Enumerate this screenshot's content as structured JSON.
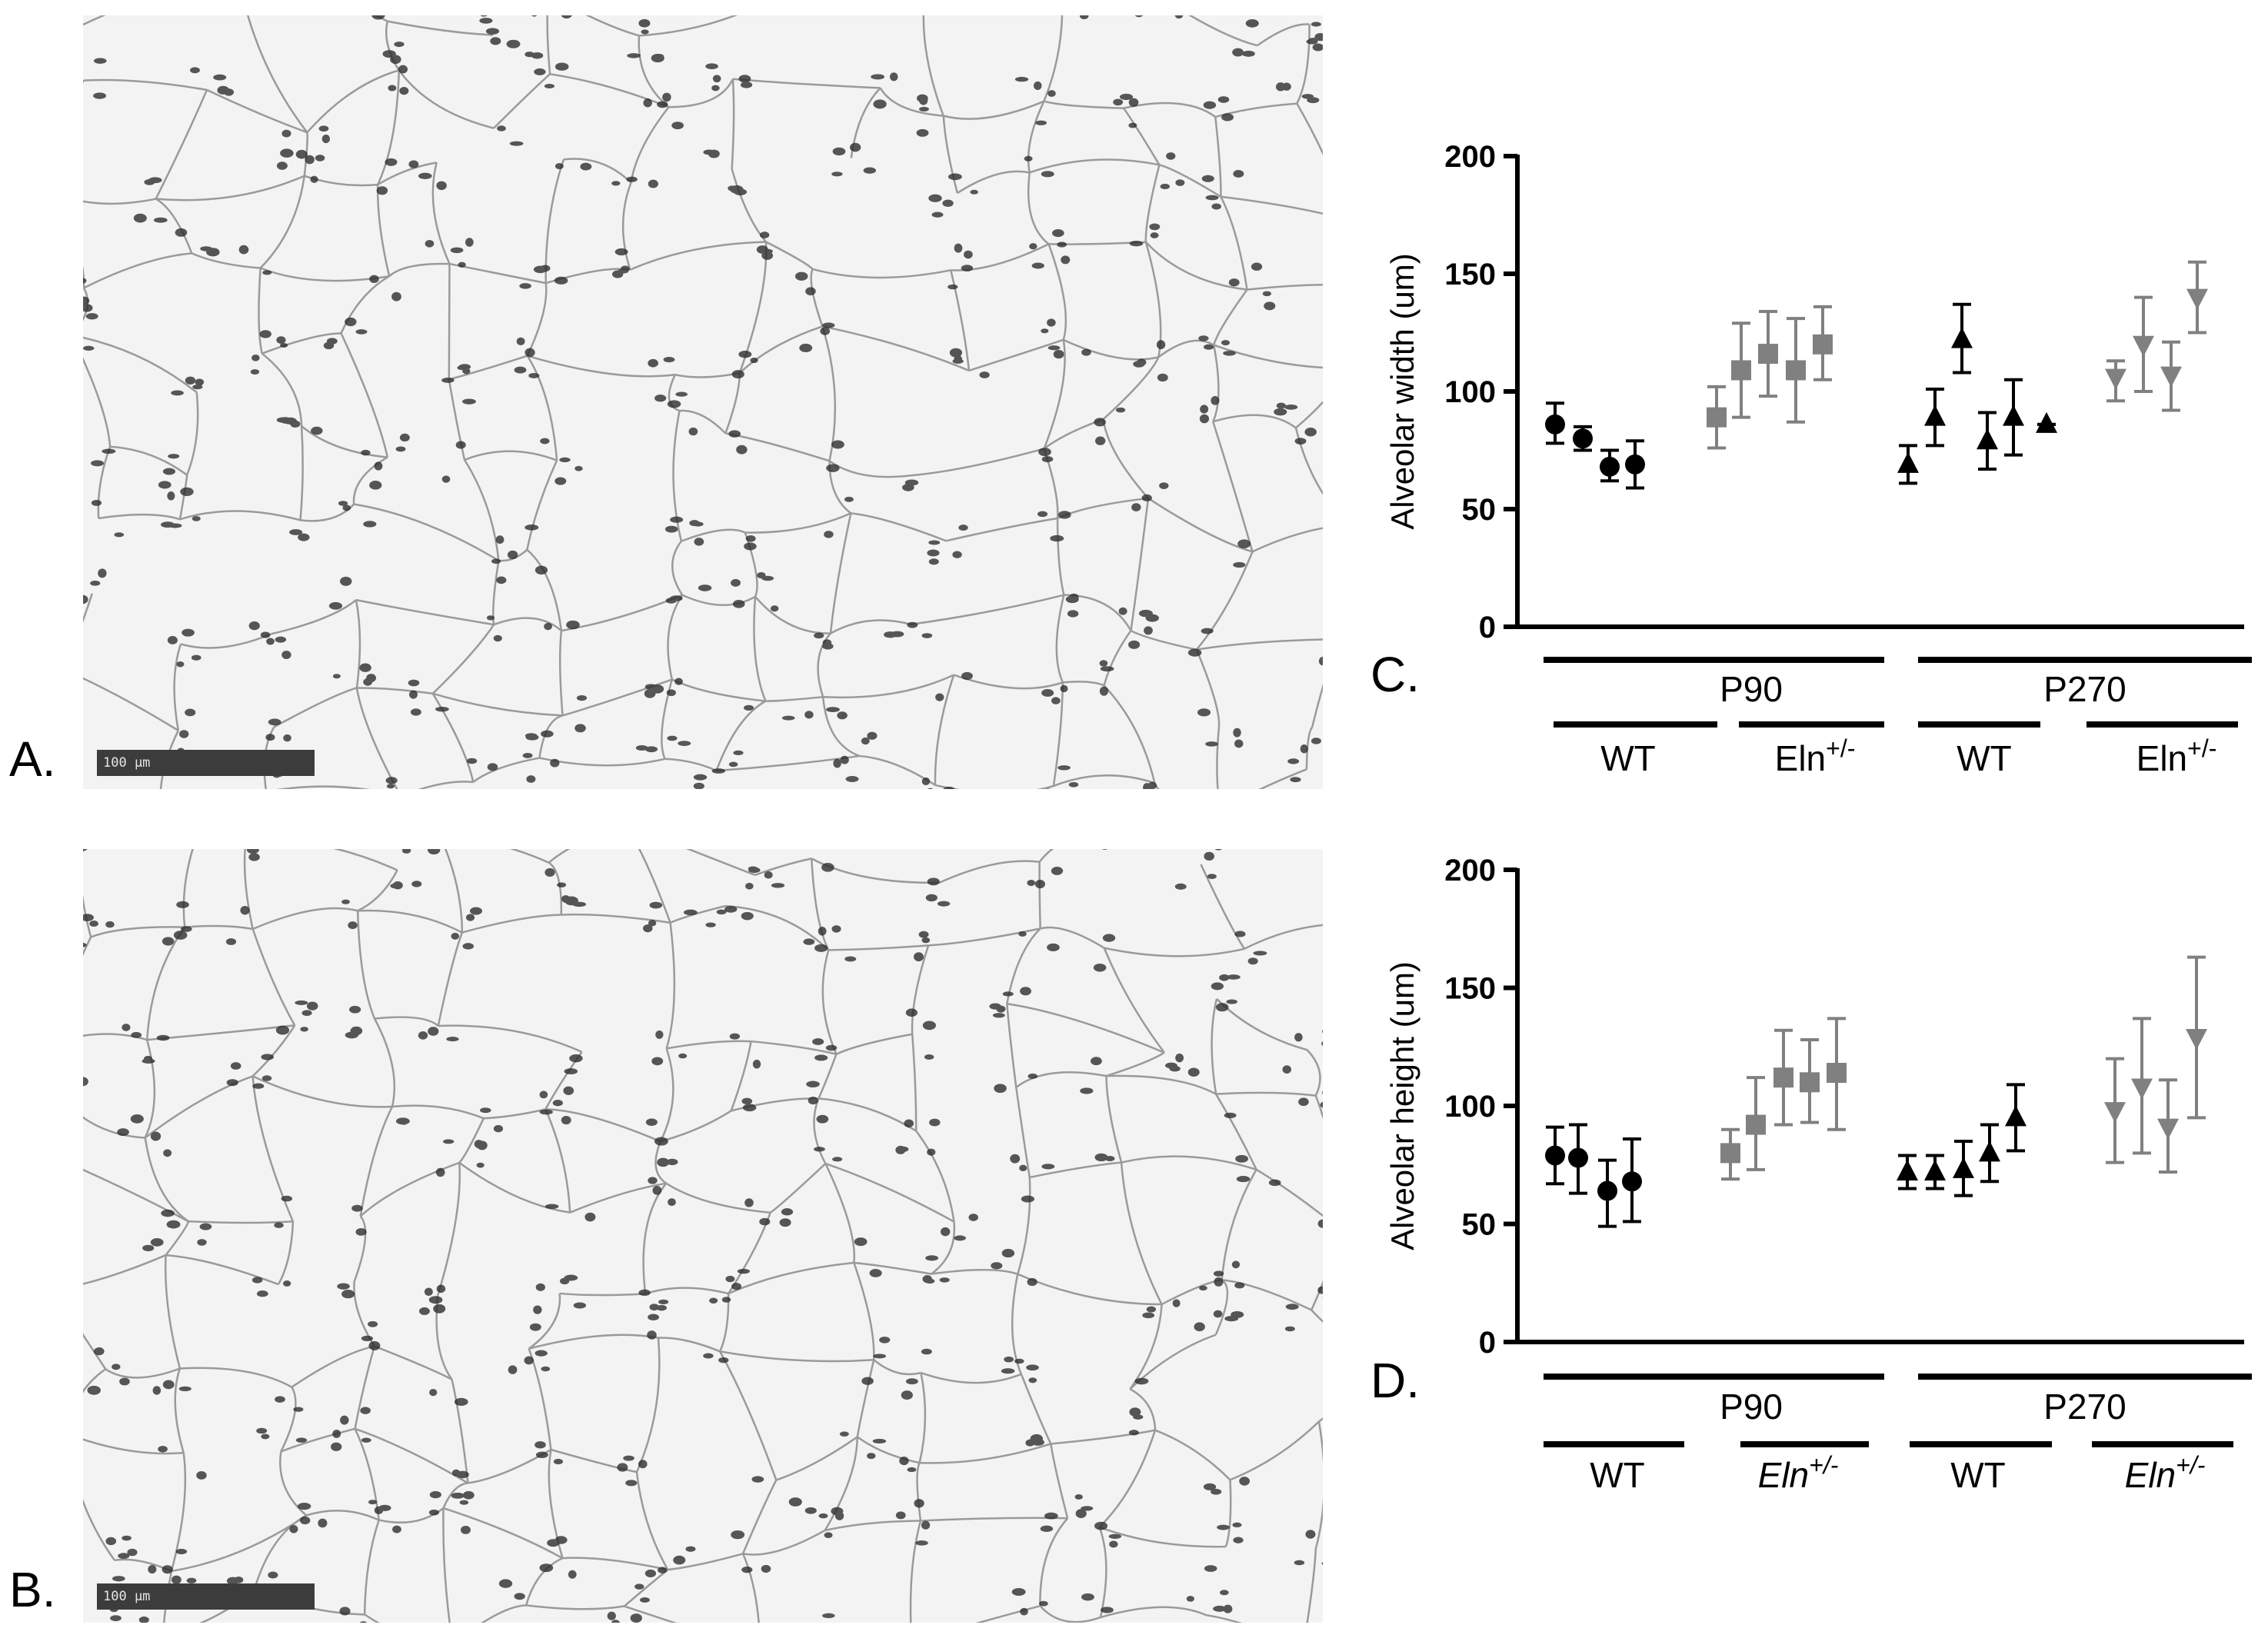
{
  "panels": {
    "A": {
      "letter": "A.",
      "scalebar": "100 µm"
    },
    "B": {
      "letter": "B.",
      "scalebar": "100 µm"
    },
    "C": {
      "letter": "C."
    },
    "D": {
      "letter": "D."
    }
  },
  "colors": {
    "wt": "#000000",
    "eln": "#808080",
    "background": "#f3f3f3",
    "cells": "#2a2a2a"
  },
  "chart_data": [
    {
      "type": "scatter",
      "panel": "C",
      "ylabel": "Alveolar width (um)",
      "ylim": [
        0,
        200
      ],
      "yticks": [
        0,
        50,
        100,
        150,
        200
      ],
      "group_labels": {
        "top": [
          "P90",
          "P270"
        ],
        "bottom": [
          "WT",
          "Eln+/-",
          "WT",
          "Eln+/-"
        ]
      },
      "series": [
        {
          "group": "P90 WT",
          "marker": "circle",
          "color": "#000000",
          "values": [
            86,
            80,
            68,
            69
          ],
          "err_low": [
            78,
            75,
            62,
            59
          ],
          "err_high": [
            95,
            85,
            75,
            79
          ]
        },
        {
          "group": "P90 Eln+/-",
          "marker": "square",
          "color": "#808080",
          "values": [
            89,
            109,
            116,
            109,
            120
          ],
          "err_low": [
            76,
            89,
            98,
            87,
            105
          ],
          "err_high": [
            102,
            129,
            134,
            131,
            136
          ]
        },
        {
          "group": "P270 WT",
          "marker": "triangle-up",
          "color": "#000000",
          "values": [
            69,
            89,
            122,
            79,
            89,
            86
          ],
          "err_low": [
            61,
            77,
            108,
            67,
            73,
            86
          ],
          "err_high": [
            77,
            101,
            137,
            91,
            105,
            86
          ]
        },
        {
          "group": "P270 Eln+/-",
          "marker": "triangle-down",
          "color": "#808080",
          "values": [
            106,
            120,
            107,
            140
          ],
          "err_low": [
            96,
            100,
            92,
            125
          ],
          "err_high": [
            113,
            140,
            121,
            155
          ]
        }
      ]
    },
    {
      "type": "scatter",
      "panel": "D",
      "ylabel": "Alveolar height (um)",
      "ylim": [
        0,
        200
      ],
      "yticks": [
        0,
        50,
        100,
        150,
        200
      ],
      "group_labels": {
        "top": [
          "P90",
          "P270"
        ],
        "bottom": [
          "WT",
          "Eln+/-",
          "WT",
          "Eln+/-"
        ]
      },
      "series": [
        {
          "group": "P90 WT",
          "marker": "circle",
          "color": "#000000",
          "values": [
            79,
            78,
            64,
            68
          ],
          "err_low": [
            67,
            63,
            49,
            51
          ],
          "err_high": [
            91,
            92,
            77,
            86
          ]
        },
        {
          "group": "P90 Eln+/-",
          "marker": "square",
          "color": "#808080",
          "values": [
            80,
            92,
            112,
            110,
            114
          ],
          "err_low": [
            69,
            73,
            92,
            93,
            90
          ],
          "err_high": [
            90,
            112,
            132,
            128,
            137
          ]
        },
        {
          "group": "P270 WT",
          "marker": "triangle-up",
          "color": "#000000",
          "values": [
            72,
            72,
            73,
            80,
            95
          ],
          "err_low": [
            65,
            65,
            62,
            68,
            81
          ],
          "err_high": [
            79,
            79,
            85,
            92,
            109
          ]
        },
        {
          "group": "P270 Eln+/-",
          "marker": "triangle-down",
          "color": "#808080",
          "values": [
            98,
            108,
            91,
            129
          ],
          "err_low": [
            76,
            80,
            72,
            95
          ],
          "err_high": [
            120,
            137,
            111,
            163
          ]
        }
      ]
    }
  ]
}
